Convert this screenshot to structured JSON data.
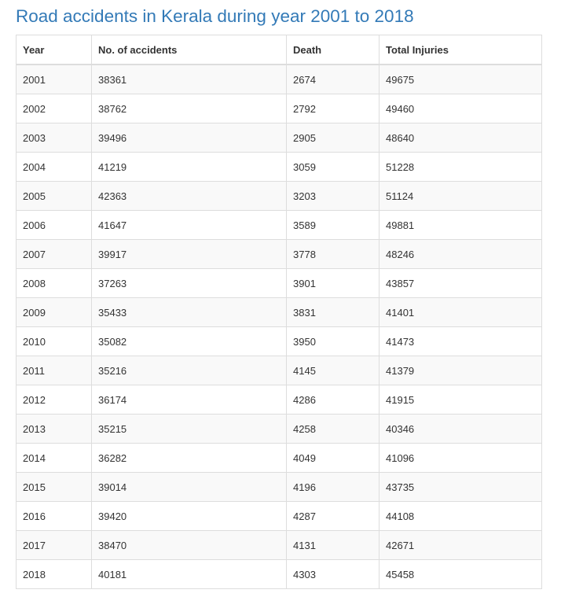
{
  "title": "Road accidents in Kerala during year 2001 to 2018",
  "table": {
    "headers": [
      "Year",
      "No. of accidents",
      "Death",
      "Total Injuries"
    ],
    "rows": [
      [
        "2001",
        "38361",
        "2674",
        "49675"
      ],
      [
        "2002",
        "38762",
        "2792",
        "49460"
      ],
      [
        "2003",
        "39496",
        "2905",
        "48640"
      ],
      [
        "2004",
        "41219",
        "3059",
        "51228"
      ],
      [
        "2005",
        "42363",
        "3203",
        "51124"
      ],
      [
        "2006",
        "41647",
        "3589",
        "49881"
      ],
      [
        "2007",
        "39917",
        "3778",
        "48246"
      ],
      [
        "2008",
        "37263",
        "3901",
        "43857"
      ],
      [
        "2009",
        "35433",
        "3831",
        "41401"
      ],
      [
        "2010",
        "35082",
        "3950",
        "41473"
      ],
      [
        "2011",
        "35216",
        "4145",
        "41379"
      ],
      [
        "2012",
        "36174",
        "4286",
        "41915"
      ],
      [
        "2013",
        "35215",
        "4258",
        "40346"
      ],
      [
        "2014",
        "36282",
        "4049",
        "41096"
      ],
      [
        "2015",
        "39014",
        "4196",
        "43735"
      ],
      [
        "2016",
        "39420",
        "4287",
        "44108"
      ],
      [
        "2017",
        "38470",
        "4131",
        "42671"
      ],
      [
        "2018",
        "40181",
        "4303",
        "45458"
      ]
    ]
  },
  "colors": {
    "title": "#337ab7",
    "text": "#333333",
    "border": "#dddddd",
    "stripe": "#f9f9f9"
  }
}
